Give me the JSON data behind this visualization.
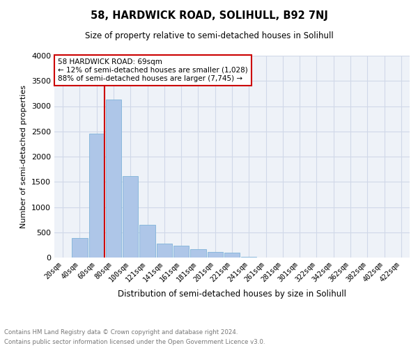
{
  "title": "58, HARDWICK ROAD, SOLIHULL, B92 7NJ",
  "subtitle": "Size of property relative to semi-detached houses in Solihull",
  "xlabel": "Distribution of semi-detached houses by size in Solihull",
  "ylabel": "Number of semi-detached properties",
  "footnote1": "Contains HM Land Registry data © Crown copyright and database right 2024.",
  "footnote2": "Contains public sector information licensed under the Open Government Licence v3.0.",
  "categories": [
    "20sqm",
    "40sqm",
    "60sqm",
    "80sqm",
    "100sqm",
    "121sqm",
    "141sqm",
    "161sqm",
    "181sqm",
    "201sqm",
    "221sqm",
    "241sqm",
    "261sqm",
    "281sqm",
    "301sqm",
    "322sqm",
    "342sqm",
    "362sqm",
    "382sqm",
    "402sqm",
    "422sqm"
  ],
  "values": [
    5,
    380,
    2450,
    3130,
    1620,
    650,
    270,
    230,
    165,
    110,
    90,
    20,
    0,
    0,
    0,
    0,
    0,
    0,
    0,
    0,
    0
  ],
  "bar_color": "#aec6e8",
  "bar_edge_color": "#7fb3d9",
  "ylim": [
    0,
    4000
  ],
  "yticks": [
    0,
    500,
    1000,
    1500,
    2000,
    2500,
    3000,
    3500,
    4000
  ],
  "property_size": 69,
  "property_label": "58 HARDWICK ROAD: 69sqm",
  "smaller_pct": "12%",
  "smaller_count": "1,028",
  "larger_pct": "88%",
  "larger_count": "7,745",
  "vline_color": "#cc0000",
  "annotation_box_color": "#cc0000",
  "grid_color": "#d0d8e8",
  "bg_color": "#eef2f8"
}
